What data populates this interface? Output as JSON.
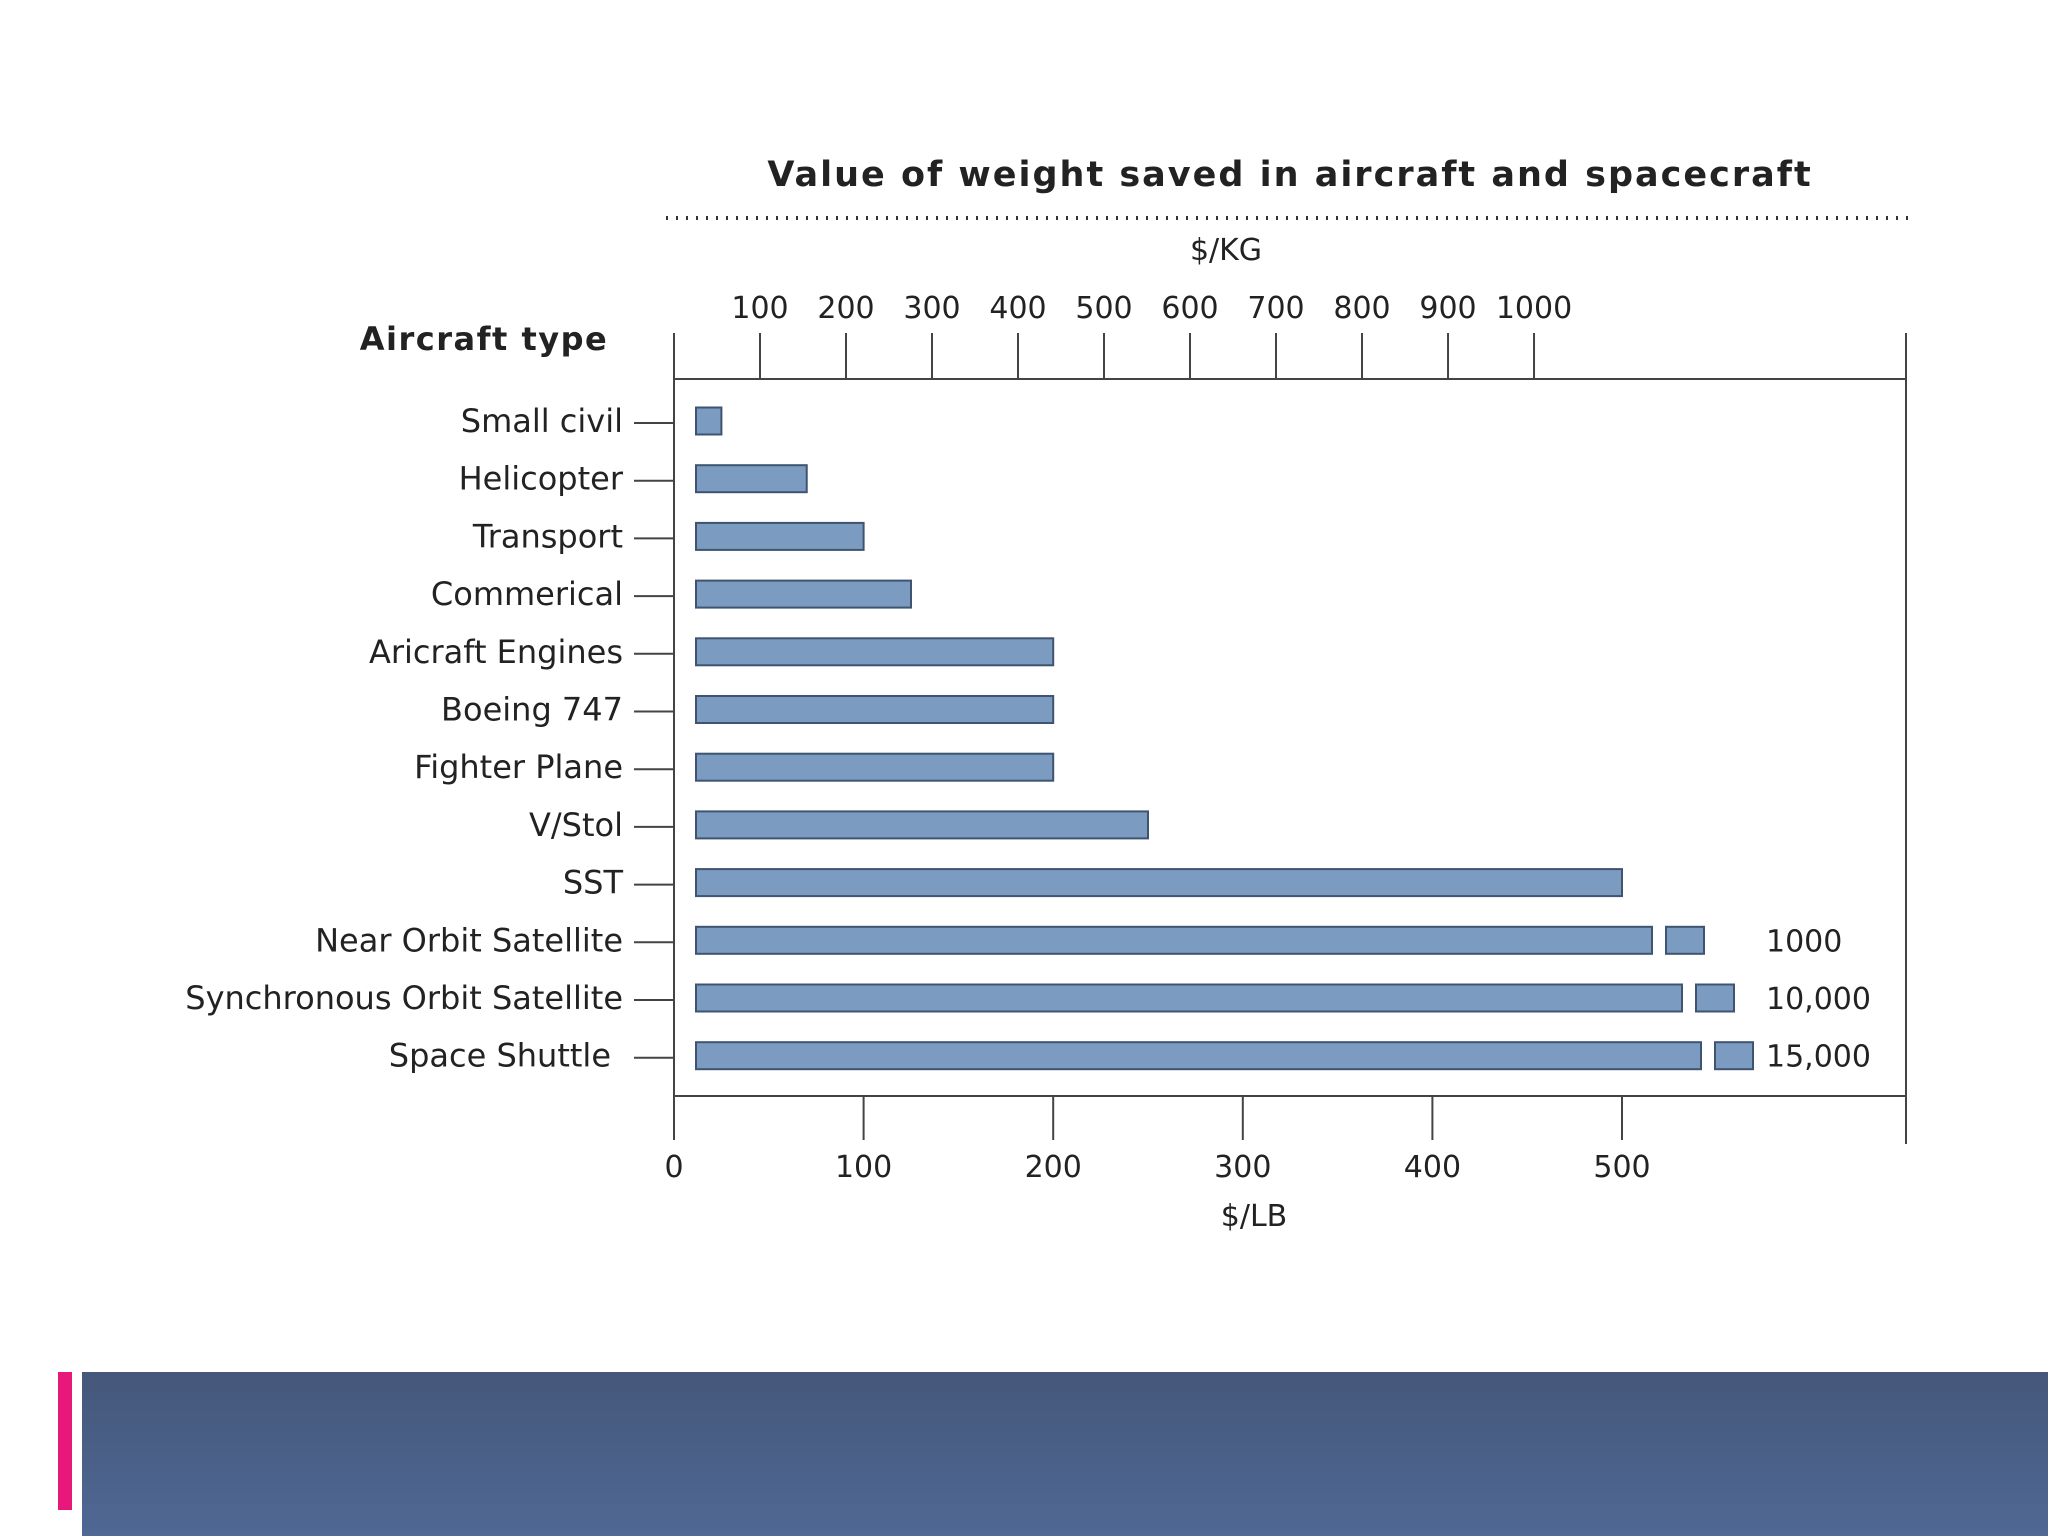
{
  "chart_data": {
    "type": "bar",
    "orientation": "horizontal",
    "title": "Value of weight saved in aircraft and spacecraft",
    "category_axis_label": "Aircraft type",
    "xlabel": "$/LB",
    "x2label": "$/KG",
    "xlim": [
      0,
      600
    ],
    "x_ticks": [
      0,
      100,
      200,
      300,
      400,
      500
    ],
    "x_tick_labels": [
      "0",
      "100",
      "200",
      "300",
      "400",
      "500"
    ],
    "x2_ticks": [
      100,
      200,
      300,
      400,
      500,
      600,
      700,
      800,
      900,
      1000
    ],
    "x2_tick_labels": [
      "100",
      "200",
      "300",
      "400",
      "500",
      "600",
      "700",
      "800",
      "900",
      "1000"
    ],
    "categories": [
      "Small civil",
      "Helicopter",
      "Transport",
      "Commerical",
      "Aricraft Engines",
      "Boeing 747",
      "Fighter Plane",
      "V/Stol",
      "SST",
      "Near Orbit Satellite",
      "Synchronous Orbit Satellite",
      "Space Shuttle"
    ],
    "values": [
      25,
      70,
      100,
      125,
      200,
      200,
      200,
      250,
      500,
      1000,
      10000,
      15000
    ],
    "value_labels": [
      "",
      "",
      "",
      "",
      "",
      "",
      "",
      "",
      "",
      "1000",
      "10,000",
      "15,000"
    ],
    "bar_color": "#7b9cc0",
    "bar_edge_color": "#3e5470"
  }
}
